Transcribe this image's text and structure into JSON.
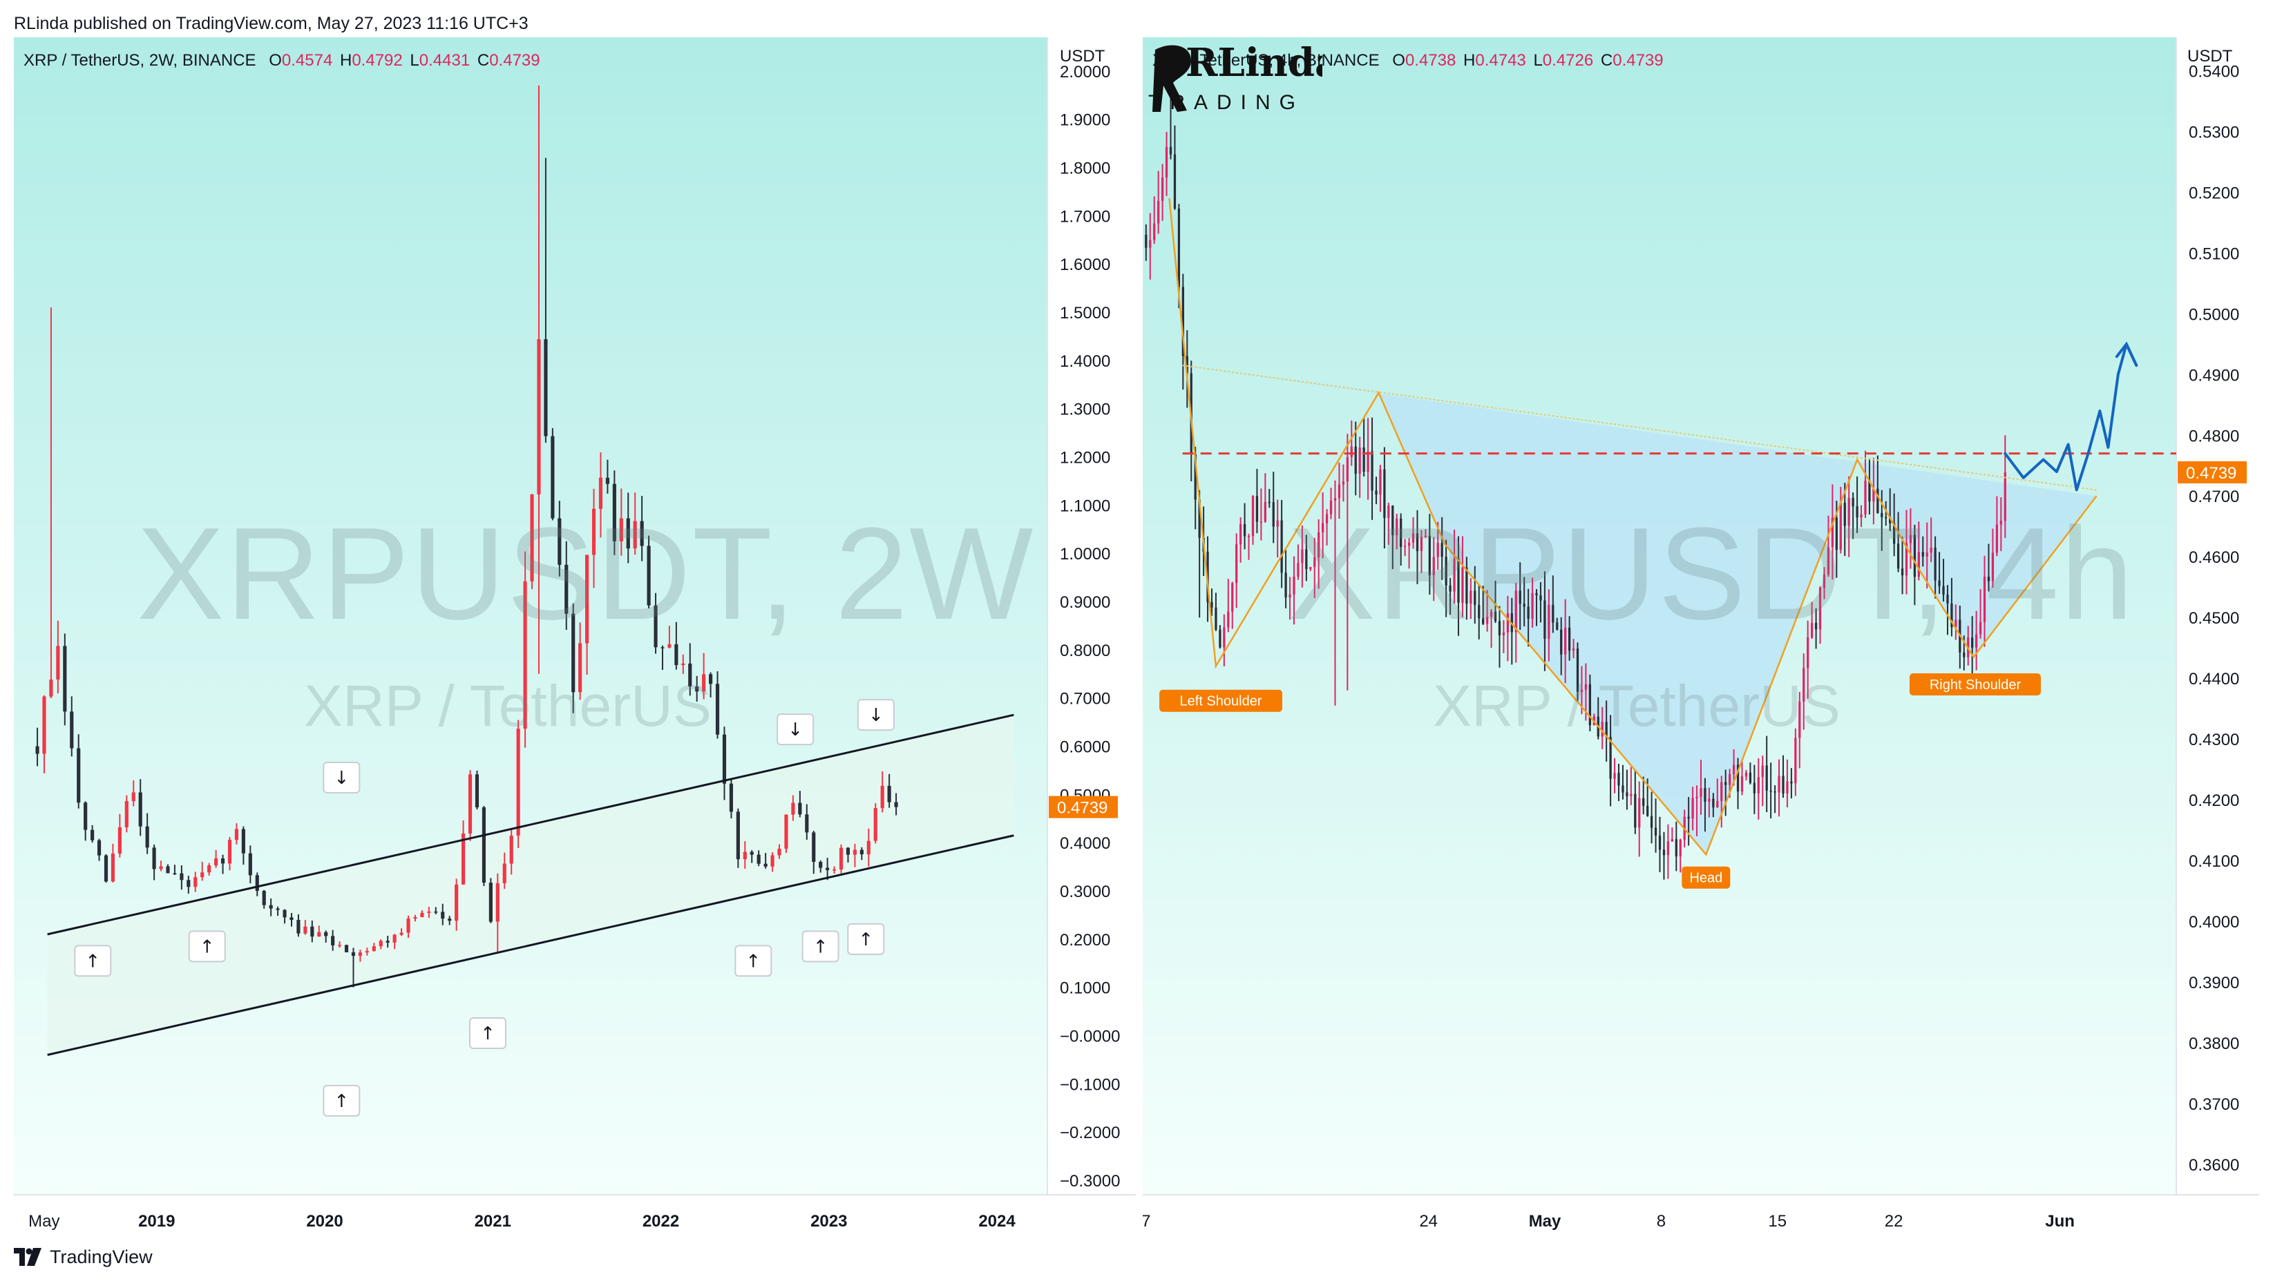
{
  "publish_line": "RLinda published on TradingView.com, May 27, 2023 11:16 UTC+3",
  "footer": {
    "brand": "TradingView"
  },
  "left_chart": {
    "legend": {
      "symbol": "XRP / TetherUS, 2W, BINANCE",
      "o_label": "O",
      "o": "0.4574",
      "h_label": "H",
      "h": "0.4792",
      "l_label": "L",
      "l": "0.4431",
      "c_label": "C",
      "c": "0.4739"
    },
    "unit": "USDT",
    "watermark": {
      "big": "XRPUSDT, 2W",
      "small": "XRP / TetherUS"
    },
    "last_price_label": "0.4739",
    "colors": {
      "up": "#f23645",
      "down": "#2a2e39",
      "bg_top": "#b0ece6",
      "bg_bottom": "#f4fffc",
      "channel_fill": "#e6f7f0",
      "last_price": "#f57c00"
    }
  },
  "right_chart": {
    "legend": {
      "symbol": "XRP / TetherUS, 4h, BINANCE",
      "o_label": "O",
      "o": "0.4738",
      "h_label": "H",
      "h": "0.4743",
      "l_label": "L",
      "l": "0.4726",
      "c_label": "C",
      "c": "0.4739"
    },
    "unit": "USDT",
    "watermark": {
      "big": "XRPUSDT, 4h",
      "small": "XRP / TetherUS"
    },
    "last_price_label": "0.4739",
    "pattern_labels": {
      "left": "Left Shoulder",
      "head": "Head",
      "right": "Right Shoulder"
    },
    "signature": {
      "top": "RLinda",
      "bottom": "TRADING"
    },
    "colors": {
      "up": "#e02466",
      "down": "#2a2e39",
      "bg_top": "#b0ece6",
      "bg_bottom": "#f4fffc",
      "pattern_fill": "#b9e3f5",
      "pattern_line": "#f0a020",
      "resistance": "#e53935",
      "projection": "#1565c0",
      "last_price": "#f57c00"
    }
  },
  "chart_data": [
    {
      "type": "candlestick",
      "title": "XRP / TetherUS, 2W, BINANCE",
      "ylabel": "USDT",
      "ylim": [
        -0.33,
        2.07
      ],
      "yticks": [
        2.0,
        1.9,
        1.8,
        1.7,
        1.6,
        1.5,
        1.4,
        1.3,
        1.2,
        1.1,
        1.0,
        0.9,
        0.8,
        0.7,
        0.6,
        0.5,
        0.4,
        0.3,
        0.2,
        0.1,
        -0.0,
        -0.1,
        -0.2,
        -0.3
      ],
      "ytick_labels": [
        "2.0000",
        "1.9000",
        "1.8000",
        "1.7000",
        "1.6000",
        "1.5000",
        "1.4000",
        "1.3000",
        "1.2000",
        "1.1000",
        "1.0000",
        "0.9000",
        "0.8000",
        "0.7000",
        "0.6000",
        "0.5000",
        "0.4000",
        "0.3000",
        "0.2000",
        "0.1000",
        "−0.0000",
        "−0.1000",
        "−0.2000",
        "−0.3000"
      ],
      "x_labels": [
        {
          "label": "May",
          "t": 2018.33
        },
        {
          "label": "2019",
          "t": 2019.0
        },
        {
          "label": "2020",
          "t": 2020.0
        },
        {
          "label": "2021",
          "t": 2021.0
        },
        {
          "label": "2022",
          "t": 2022.0
        },
        {
          "label": "2023",
          "t": 2023.0
        },
        {
          "label": "2024",
          "t": 2024.0
        }
      ],
      "xlim": [
        2018.15,
        2024.3
      ],
      "anchors": [
        {
          "t": 2018.29,
          "p": 0.6
        },
        {
          "t": 2018.4,
          "p": 0.8
        },
        {
          "t": 2018.55,
          "p": 0.45
        },
        {
          "t": 2018.7,
          "p": 0.32
        },
        {
          "t": 2018.85,
          "p": 0.52
        },
        {
          "t": 2018.97,
          "p": 0.36
        },
        {
          "t": 2019.2,
          "p": 0.31
        },
        {
          "t": 2019.35,
          "p": 0.35
        },
        {
          "t": 2019.48,
          "p": 0.42
        },
        {
          "t": 2019.62,
          "p": 0.28
        },
        {
          "t": 2019.85,
          "p": 0.22
        },
        {
          "t": 2020.0,
          "p": 0.2
        },
        {
          "t": 2020.18,
          "p": 0.17
        },
        {
          "t": 2020.38,
          "p": 0.2
        },
        {
          "t": 2020.55,
          "p": 0.25
        },
        {
          "t": 2020.75,
          "p": 0.25
        },
        {
          "t": 2020.88,
          "p": 0.55
        },
        {
          "t": 2020.97,
          "p": 0.22
        },
        {
          "t": 2021.12,
          "p": 0.45
        },
        {
          "t": 2021.27,
          "p": 1.4
        },
        {
          "t": 2021.37,
          "p": 1.0
        },
        {
          "t": 2021.5,
          "p": 0.7
        },
        {
          "t": 2021.62,
          "p": 1.2
        },
        {
          "t": 2021.72,
          "p": 1.05
        },
        {
          "t": 2021.85,
          "p": 1.05
        },
        {
          "t": 2021.98,
          "p": 0.8
        },
        {
          "t": 2022.12,
          "p": 0.75
        },
        {
          "t": 2022.28,
          "p": 0.75
        },
        {
          "t": 2022.45,
          "p": 0.38
        },
        {
          "t": 2022.62,
          "p": 0.34
        },
        {
          "t": 2022.8,
          "p": 0.48
        },
        {
          "t": 2022.95,
          "p": 0.34
        },
        {
          "t": 2023.1,
          "p": 0.38
        },
        {
          "t": 2023.2,
          "p": 0.38
        },
        {
          "t": 2023.3,
          "p": 0.5
        },
        {
          "t": 2023.4,
          "p": 0.4739
        }
      ],
      "spikes": [
        {
          "t": 2018.37,
          "high": 1.51
        },
        {
          "t": 2021.28,
          "high": 1.97,
          "low": 0.75
        },
        {
          "t": 2021.32,
          "high": 1.82
        },
        {
          "t": 2020.18,
          "low": 0.1
        },
        {
          "t": 2021.03,
          "low": 0.17
        }
      ],
      "channel": {
        "upper": [
          {
            "t": 2018.35,
            "p": 0.21
          },
          {
            "t": 2024.1,
            "p": 0.665
          }
        ],
        "lower": [
          {
            "t": 2018.35,
            "p": -0.04
          },
          {
            "t": 2024.1,
            "p": 0.415
          }
        ]
      },
      "annotations": [
        {
          "dir": "up",
          "t": 2018.62,
          "p": 0.155
        },
        {
          "dir": "up",
          "t": 2019.3,
          "p": 0.185
        },
        {
          "dir": "down",
          "t": 2020.1,
          "p": 0.535
        },
        {
          "dir": "up",
          "t": 2020.1,
          "p": -0.135
        },
        {
          "dir": "up",
          "t": 2020.97,
          "p": 0.005
        },
        {
          "dir": "up",
          "t": 2022.55,
          "p": 0.155
        },
        {
          "dir": "down",
          "t": 2022.8,
          "p": 0.635
        },
        {
          "dir": "up",
          "t": 2022.95,
          "p": 0.185
        },
        {
          "dir": "up",
          "t": 2023.22,
          "p": 0.2
        },
        {
          "dir": "down",
          "t": 2023.28,
          "p": 0.665
        }
      ],
      "last_price": 0.4739
    },
    {
      "type": "candlestick",
      "title": "XRP / TetherUS, 4h, BINANCE",
      "ylabel": "USDT",
      "ylim": [
        0.355,
        0.5455
      ],
      "yticks": [
        0.54,
        0.53,
        0.52,
        0.51,
        0.5,
        0.49,
        0.48,
        0.47,
        0.46,
        0.45,
        0.44,
        0.43,
        0.42,
        0.41,
        0.4,
        0.39,
        0.38,
        0.37,
        0.36
      ],
      "ytick_labels": [
        "0.5400",
        "0.5300",
        "0.5200",
        "0.5100",
        "0.5000",
        "0.4900",
        "0.4800",
        "0.4700",
        "0.4600",
        "0.4500",
        "0.4400",
        "0.4300",
        "0.4200",
        "0.4100",
        "0.4000",
        "0.3900",
        "0.3800",
        "0.3700",
        "0.3600"
      ],
      "x_labels": [
        {
          "label": "7",
          "d": -24
        },
        {
          "label": "24",
          "d": -7
        },
        {
          "label": "May",
          "d": 0
        },
        {
          "label": "8",
          "d": 7
        },
        {
          "label": "15",
          "d": 14
        },
        {
          "label": "22",
          "d": 21
        },
        {
          "label": "Jun",
          "d": 31
        }
      ],
      "xlim": [
        -24.2,
        38.0
      ],
      "anchors": [
        {
          "d": -24.0,
          "p": 0.513
        },
        {
          "d": -22.6,
          "p": 0.528
        },
        {
          "d": -21.6,
          "p": 0.49
        },
        {
          "d": -20.6,
          "p": 0.46
        },
        {
          "d": -19.5,
          "p": 0.4425
        },
        {
          "d": -18.5,
          "p": 0.465
        },
        {
          "d": -16.5,
          "p": 0.468
        },
        {
          "d": -15.5,
          "p": 0.455
        },
        {
          "d": -14.0,
          "p": 0.462
        },
        {
          "d": -12.0,
          "p": 0.475
        },
        {
          "d": -11.0,
          "p": 0.478
        },
        {
          "d": -9.5,
          "p": 0.468
        },
        {
          "d": -8.0,
          "p": 0.463
        },
        {
          "d": -5.5,
          "p": 0.457
        },
        {
          "d": -3.0,
          "p": 0.448
        },
        {
          "d": -1.0,
          "p": 0.453
        },
        {
          "d": 1.5,
          "p": 0.445
        },
        {
          "d": 3.0,
          "p": 0.432
        },
        {
          "d": 5.5,
          "p": 0.418
        },
        {
          "d": 7.5,
          "p": 0.411
        },
        {
          "d": 9.5,
          "p": 0.42
        },
        {
          "d": 11.0,
          "p": 0.425
        },
        {
          "d": 13.0,
          "p": 0.424
        },
        {
          "d": 14.8,
          "p": 0.421
        },
        {
          "d": 15.5,
          "p": 0.44
        },
        {
          "d": 17.0,
          "p": 0.461
        },
        {
          "d": 18.5,
          "p": 0.47
        },
        {
          "d": 20.0,
          "p": 0.468
        },
        {
          "d": 21.5,
          "p": 0.46
        },
        {
          "d": 23.0,
          "p": 0.46
        },
        {
          "d": 24.3,
          "p": 0.449
        },
        {
          "d": 25.5,
          "p": 0.4445
        },
        {
          "d": 26.8,
          "p": 0.458
        },
        {
          "d": 27.7,
          "p": 0.4739
        }
      ],
      "spikes": [
        {
          "d": -22.5,
          "high": 0.5415
        },
        {
          "d": -20.8,
          "low": 0.45
        },
        {
          "d": -12.6,
          "low": 0.4355
        },
        {
          "d": 7.3,
          "low": 0.4095
        },
        {
          "d": 9.2,
          "low": 0.414
        },
        {
          "d": 27.6,
          "high": 0.48
        },
        {
          "d": -11.9,
          "low": 0.438
        }
      ],
      "head_and_shoulders": {
        "fill_poly": [
          [
            -21.8,
            0.4915
          ],
          [
            -10.0,
            0.487
          ],
          [
            -6.0,
            0.462
          ],
          [
            9.7,
            0.411
          ],
          [
            18.8,
            0.476
          ],
          [
            22.5,
            0.458
          ],
          [
            25.8,
            0.4435
          ],
          [
            33.2,
            0.47
          ],
          [
            -21.8,
            0.4915
          ]
        ],
        "pattern_path": [
          [
            -22.6,
            0.519
          ],
          [
            -19.8,
            0.442
          ],
          [
            -10.0,
            0.487
          ],
          [
            -6.0,
            0.462
          ],
          [
            9.7,
            0.411
          ],
          [
            18.8,
            0.476
          ],
          [
            22.5,
            0.458
          ],
          [
            25.8,
            0.4435
          ],
          [
            33.2,
            0.47
          ]
        ],
        "neckline": [
          [
            -21.8,
            0.4915
          ],
          [
            33.2,
            0.471
          ]
        ],
        "resistance": 0.477
      },
      "projection_path": [
        [
          27.7,
          0.477
        ],
        [
          28.8,
          0.473
        ],
        [
          30.0,
          0.476
        ],
        [
          30.8,
          0.474
        ],
        [
          31.5,
          0.4785
        ],
        [
          32.0,
          0.471
        ],
        [
          32.7,
          0.477
        ],
        [
          33.4,
          0.484
        ],
        [
          33.9,
          0.478
        ],
        [
          34.5,
          0.49
        ],
        [
          35.0,
          0.495
        ],
        [
          35.6,
          0.4915
        ]
      ],
      "last_price": 0.4739
    }
  ]
}
